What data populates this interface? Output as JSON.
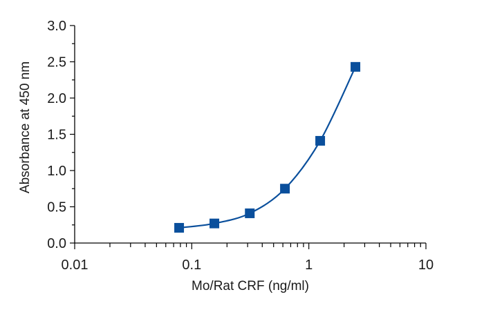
{
  "chart_data": {
    "type": "scatter",
    "title": "",
    "xlabel": "Mo/Rat CRF (ng/ml)",
    "ylabel": "Absorbance at 450 nm",
    "x_scale": "log",
    "xlim": [
      0.01,
      10
    ],
    "ylim": [
      0.0,
      3.0
    ],
    "x_ticks": [
      {
        "value": 0.01,
        "label": "0.01"
      },
      {
        "value": 0.1,
        "label": "0.1"
      },
      {
        "value": 1,
        "label": "1"
      },
      {
        "value": 10,
        "label": "10"
      }
    ],
    "y_ticks": [
      {
        "value": 0.0,
        "label": "0.0"
      },
      {
        "value": 0.5,
        "label": "0.5"
      },
      {
        "value": 1.0,
        "label": "1.0"
      },
      {
        "value": 1.5,
        "label": "1.5"
      },
      {
        "value": 2.0,
        "label": "2.0"
      },
      {
        "value": 2.5,
        "label": "2.5"
      },
      {
        "value": 3.0,
        "label": "3.0"
      }
    ],
    "grid": false,
    "series": [
      {
        "color": "#0a4f9c",
        "marker": "square",
        "fit_line": true,
        "points": [
          {
            "x": 0.078,
            "y": 0.21
          },
          {
            "x": 0.156,
            "y": 0.27
          },
          {
            "x": 0.313,
            "y": 0.41
          },
          {
            "x": 0.625,
            "y": 0.75
          },
          {
            "x": 1.25,
            "y": 1.41
          },
          {
            "x": 2.5,
            "y": 2.43
          }
        ]
      }
    ]
  }
}
